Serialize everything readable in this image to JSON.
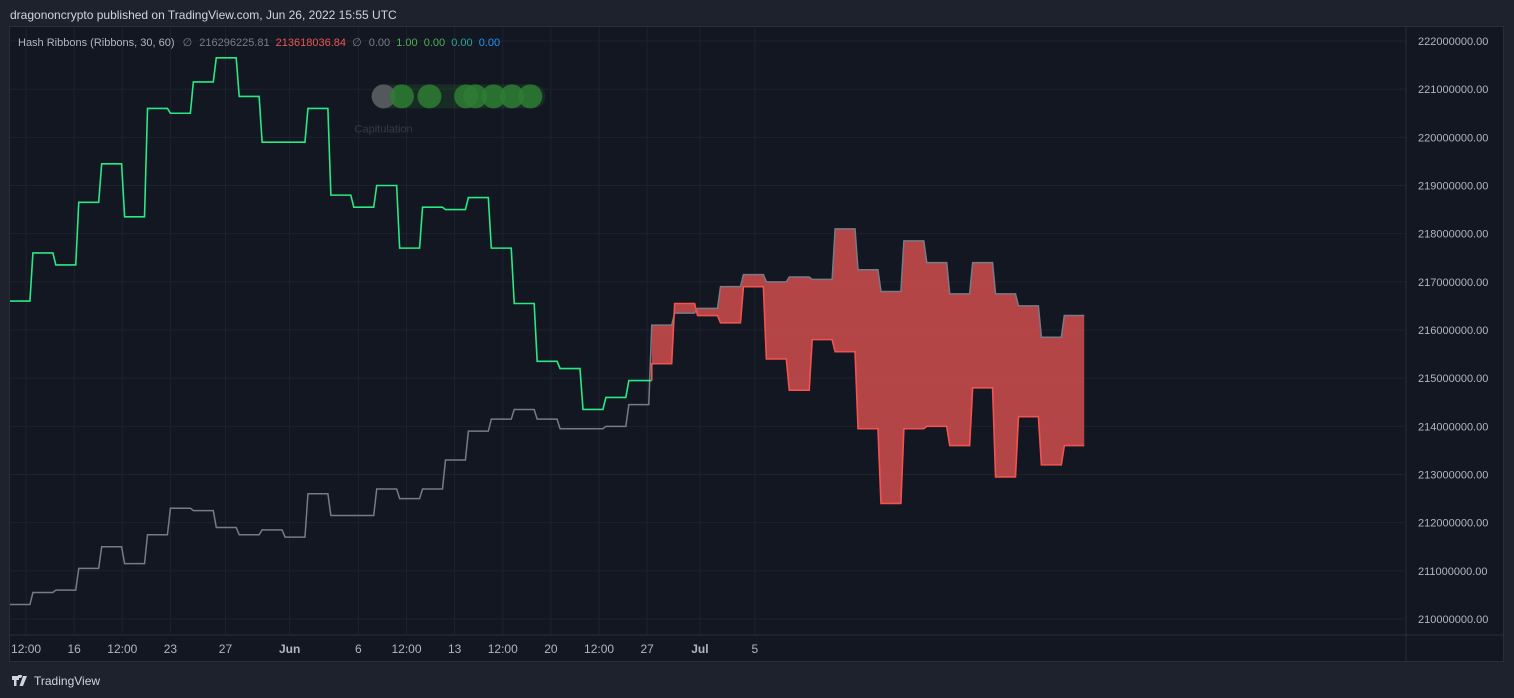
{
  "header": {
    "published_by": "dragononcrypto published on TradingView.com, Jun 26, 2022 15:55 UTC"
  },
  "legend": {
    "title": "Hash Ribbons (Ribbons, 30, 60)",
    "eye_symbol": "∅",
    "value_slow": "216296225.81",
    "value_fast": "213618036.84",
    "eye_symbol_2": "∅",
    "v1": "0.00",
    "v2": "1.00",
    "v3": "0.00",
    "v4": "0.00",
    "v5": "0.00",
    "colors": {
      "slow": "#787b86",
      "fast": "#ef5350",
      "v1": "#787b86",
      "v2": "#4caf50",
      "v3": "#4caf50",
      "v4": "#26a69a",
      "v5": "#2196f3"
    }
  },
  "footer": {
    "brand": "TradingView",
    "logo_icon": "tradingview-logo-icon"
  },
  "chart_data": {
    "type": "line",
    "title": "",
    "ylim": [
      209800000,
      222200000
    ],
    "y_ticks": [
      210000000,
      211000000,
      212000000,
      213000000,
      214000000,
      215000000,
      216000000,
      217000000,
      218000000,
      219000000,
      220000000,
      221000000,
      222000000
    ],
    "y_tick_labels": [
      "210000000.00",
      "211000000.00",
      "212000000.00",
      "213000000.00",
      "214000000.00",
      "215000000.00",
      "216000000.00",
      "217000000.00",
      "218000000.00",
      "219000000.00",
      "220000000.00",
      "221000000.00",
      "222000000.00"
    ],
    "x_tick_labels": [
      {
        "label": "12:00",
        "bar": 0.7,
        "bold": false
      },
      {
        "label": "16",
        "bar": 2.8,
        "bold": false
      },
      {
        "label": "12:00",
        "bar": 4.9,
        "bold": false
      },
      {
        "label": "23",
        "bar": 7.0,
        "bold": false
      },
      {
        "label": "27",
        "bar": 9.4,
        "bold": false
      },
      {
        "label": "Jun",
        "bar": 12.2,
        "bold": true
      },
      {
        "label": "6",
        "bar": 15.2,
        "bold": false
      },
      {
        "label": "12:00",
        "bar": 17.3,
        "bold": false
      },
      {
        "label": "13",
        "bar": 19.4,
        "bold": false
      },
      {
        "label": "12:00",
        "bar": 21.5,
        "bold": false
      },
      {
        "label": "20",
        "bar": 23.6,
        "bold": false
      },
      {
        "label": "12:00",
        "bar": 25.7,
        "bold": false
      },
      {
        "label": "27",
        "bar": 27.8,
        "bold": false
      },
      {
        "label": "Jul",
        "bar": 30.1,
        "bold": true
      },
      {
        "label": "5",
        "bar": 32.5,
        "bold": false
      }
    ],
    "grid": true,
    "legend_position": "top-left",
    "series": [
      {
        "key": "slow",
        "color": "#787b86",
        "values": [
          210300000,
          210550000,
          210600000,
          211050000,
          211500000,
          211150000,
          211750000,
          212300000,
          212250000,
          211900000,
          211750000,
          211850000,
          211700000,
          212600000,
          212150000,
          212150000,
          212700000,
          212500000,
          212700000,
          213300000,
          213900000,
          214150000,
          214350000,
          214150000,
          213950000,
          213950000,
          214000000,
          214450000,
          216100000,
          216350000,
          216450000,
          216900000,
          217150000,
          217000000,
          217100000,
          217050000,
          218100000,
          217250000,
          216800000,
          217850000,
          217400000,
          216750000,
          217400000,
          216750000,
          216500000,
          215850000,
          216300000
        ]
      },
      {
        "key": "fast",
        "color_above": "#2ae883",
        "color_below": "#f2534f",
        "values": [
          216600000,
          217600000,
          217350000,
          218650000,
          219450000,
          218350000,
          220600000,
          220500000,
          221150000,
          221650000,
          220850000,
          219900000,
          219900000,
          220600000,
          218800000,
          218550000,
          219000000,
          217700000,
          218550000,
          218500000,
          218750000,
          217700000,
          216550000,
          215350000,
          215200000,
          214350000,
          214600000,
          214950000,
          215300000,
          216550000,
          216300000,
          216150000,
          216900000,
          215400000,
          214750000,
          215800000,
          215550000,
          213950000,
          212400000,
          213950000,
          214000000,
          213600000,
          214800000,
          212950000,
          214200000,
          213200000,
          213600000
        ]
      }
    ],
    "signal_dots": {
      "label": "Capitulation",
      "y_value": 220850000,
      "dots": [
        {
          "bar": 16.3,
          "color": "#5d6066"
        },
        {
          "bar": 17.1,
          "color": "#2e7d32"
        },
        {
          "bar": 18.3,
          "color": "#2e7d32"
        },
        {
          "bar": 19.9,
          "color": "#2e7d32"
        },
        {
          "bar": 20.3,
          "color": "#2e7d32"
        },
        {
          "bar": 21.1,
          "color": "#2e7d32"
        },
        {
          "bar": 21.9,
          "color": "#2e7d32"
        },
        {
          "bar": 22.7,
          "color": "#2e7d32"
        }
      ]
    },
    "ribbon_fill_color": "#e05252"
  }
}
